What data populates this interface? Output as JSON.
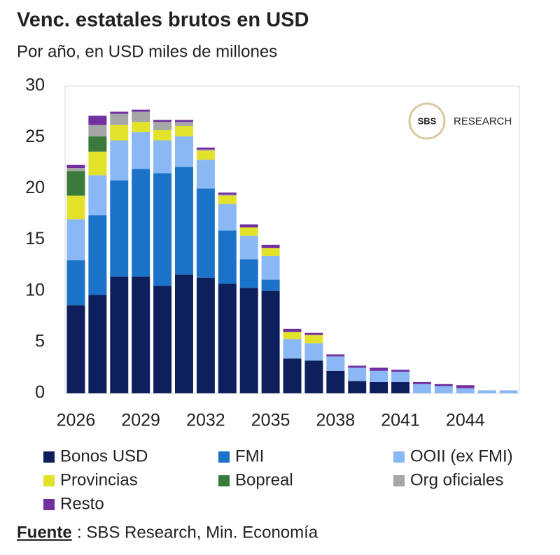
{
  "chart_data": {
    "type": "stacked_bar",
    "title": "Venc. estatales brutos en USD",
    "subtitle": "Por año, en USD miles de millones",
    "categories": [
      "2026",
      null,
      null,
      "2029",
      null,
      null,
      "2032",
      null,
      null,
      "2035",
      null,
      null,
      "2038",
      null,
      null,
      "2041",
      null,
      null,
      "2044",
      null,
      null
    ],
    "series": [
      {
        "name": "Bonos USD",
        "color": "#0d1f5c",
        "values": [
          8.6,
          9.6,
          11.4,
          11.4,
          10.5,
          11.6,
          11.3,
          10.7,
          10.3,
          10.0,
          3.4,
          3.2,
          2.2,
          1.2,
          1.1,
          1.1,
          0,
          0,
          0,
          0,
          0
        ]
      },
      {
        "name": "FMI",
        "color": "#1a73c8",
        "values": [
          4.4,
          7.8,
          9.4,
          10.5,
          11.0,
          10.5,
          8.7,
          5.2,
          2.8,
          1.1,
          0,
          0,
          0,
          0,
          0,
          0,
          0,
          0,
          0,
          0,
          0
        ]
      },
      {
        "name": "OOII (ex FMI)",
        "color": "#8ab8f5",
        "values": [
          4.0,
          3.9,
          3.9,
          3.6,
          3.2,
          3.0,
          2.8,
          2.6,
          2.3,
          2.3,
          1.9,
          1.7,
          1.4,
          1.3,
          1.1,
          1.0,
          0.9,
          0.7,
          0.5,
          0.3,
          0.3
        ]
      },
      {
        "name": "Provincias",
        "color": "#e2e22a",
        "values": [
          2.3,
          2.3,
          1.5,
          1.0,
          1.0,
          1.0,
          0.9,
          0.8,
          0.8,
          0.8,
          0.7,
          0.8,
          0,
          0,
          0,
          0,
          0,
          0,
          0,
          0,
          0
        ]
      },
      {
        "name": "Bopreal",
        "color": "#3a7a3a",
        "values": [
          2.4,
          1.5,
          0,
          0,
          0,
          0,
          0,
          0,
          0,
          0,
          0,
          0,
          0,
          0,
          0,
          0,
          0,
          0,
          0,
          0,
          0
        ]
      },
      {
        "name": "Org oficiales",
        "color": "#a6a6a6",
        "values": [
          0.3,
          1.1,
          1.1,
          1.0,
          0.8,
          0.4,
          0.1,
          0.1,
          0,
          0,
          0,
          0,
          0,
          0,
          0,
          0,
          0,
          0,
          0,
          0,
          0
        ]
      },
      {
        "name": "Resto",
        "color": "#7030a0",
        "values": [
          0.3,
          0.9,
          0.2,
          0.2,
          0.2,
          0.2,
          0.2,
          0.2,
          0.3,
          0.3,
          0.3,
          0.2,
          0.2,
          0.2,
          0.3,
          0.2,
          0.2,
          0.2,
          0.3,
          0,
          0
        ]
      }
    ],
    "ylim": [
      0,
      30
    ],
    "yticks": [
      0,
      5,
      10,
      15,
      20,
      25,
      30
    ],
    "grid": false,
    "watermark": {
      "logo": "SBS",
      "text": "RESEARCH"
    },
    "source_label": "Fuente",
    "source": ": SBS Research, Min. Economía"
  }
}
